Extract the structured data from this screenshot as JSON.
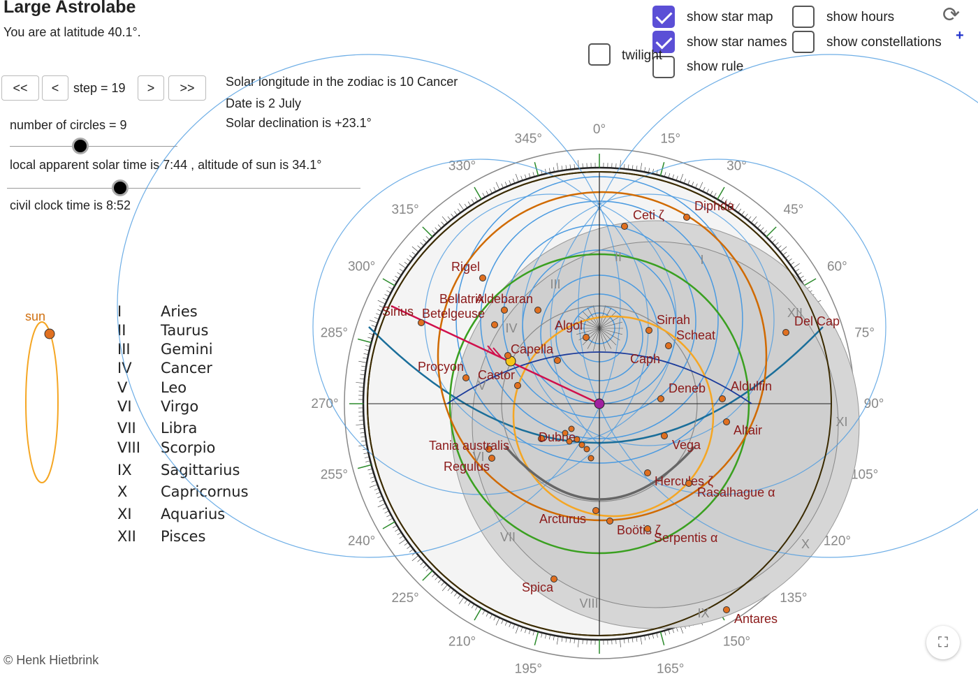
{
  "title": "Large Astrolabe",
  "latitude_text": "You are at latitude 40.1°.",
  "controls": {
    "btn_back_fast": "<<",
    "btn_back": "<",
    "step_label": "step = 19",
    "btn_fwd": ">",
    "btn_fwd_fast": ">>"
  },
  "info": {
    "solar_longitude": "Solar longitude in the zodiac is 10 Cancer",
    "date": "Date is 2 July",
    "declination": "Solar declination is +23.1°"
  },
  "sliders": {
    "circles_label": "number of circles = 9",
    "circles_fraction": 0.42,
    "solar_time_label": "local apparent solar time is 7:44 , altitude of sun is 34.1°",
    "solar_time_fraction": 0.32,
    "clock_label": "civil clock time is 8:52"
  },
  "checkboxes": {
    "star_map": {
      "label": "show star map",
      "checked": true
    },
    "star_names": {
      "label": "show star names",
      "checked": true
    },
    "rule": {
      "label": "show rule",
      "checked": false
    },
    "hours": {
      "label": "show hours",
      "checked": false
    },
    "constellations": {
      "label": "show constellations",
      "checked": false
    },
    "twilight": {
      "label": "twilight",
      "checked": false
    }
  },
  "sun_label": "sun",
  "zodiac": [
    {
      "num": "I",
      "name": "Aries"
    },
    {
      "num": "II",
      "name": "Taurus"
    },
    {
      "num": "III",
      "name": "Gemini"
    },
    {
      "num": "IV",
      "name": "Cancer"
    },
    {
      "num": "V",
      "name": "Leo"
    },
    {
      "num": "VI",
      "name": "Virgo"
    },
    {
      "num": "VII",
      "name": "Libra"
    },
    {
      "num": "VIII",
      "name": "Scorpio"
    },
    {
      "num": "IX",
      "name": "Sagittarius"
    },
    {
      "num": "X",
      "name": "Capricornus"
    },
    {
      "num": "XI",
      "name": "Aquarius"
    },
    {
      "num": "XII",
      "name": "Pisces"
    }
  ],
  "degree_labels": [
    "0°",
    "15°",
    "30°",
    "45°",
    "60°",
    "75°",
    "90°",
    "105°",
    "120°",
    "135°",
    "150°",
    "165°",
    "195°",
    "210°",
    "225°",
    "240°",
    "255°",
    "270°",
    "285°",
    "300°",
    "315°",
    "330°",
    "345°"
  ],
  "stars": [
    "Ceti ζ",
    "Diphda",
    "Rigel",
    "Bellatrix",
    "Aldebaran",
    "Sirius",
    "Betelgeuse",
    "Algol",
    "Sirrah",
    "Scheat",
    "Del Cap",
    "Capella",
    "Caph",
    "Procyon",
    "Castor",
    "Deneb",
    "Aldulfin",
    "Altair",
    "Dubhe",
    "Tania australis",
    "Vega",
    "Regulus",
    "Hercules ζ",
    "Rasalhague α",
    "Arcturus",
    "Boötis ζ",
    "Serpentis α",
    "Spica",
    "Antares"
  ],
  "zodiac_ring_labels": [
    "I",
    "II",
    "III",
    "IV",
    "V",
    "VI",
    "VII",
    "VIII",
    "IX",
    "X",
    "XI",
    "XII"
  ],
  "copyright": "© Henk Hietbrink",
  "colors": {
    "accent": "#5b4fd6",
    "star_label": "#8b1a1a",
    "star_dot": "#e07020",
    "rule": "#d0104c"
  }
}
